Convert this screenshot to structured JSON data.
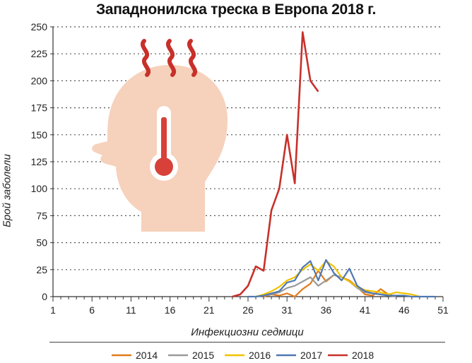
{
  "chart_data": {
    "type": "line",
    "title": "Западнонилска треска в Европа 2018 г.",
    "xlabel": "Инфекциозни седмици",
    "ylabel": "Брой заболели",
    "xlim": [
      1,
      51
    ],
    "ylim": [
      0,
      250
    ],
    "xticks": [
      "1",
      "6",
      "11",
      "16",
      "21",
      "26",
      "31",
      "36",
      "41",
      "46",
      "51"
    ],
    "yticks": [
      "0",
      "25",
      "50",
      "75",
      "100",
      "125",
      "150",
      "175",
      "200",
      "225",
      "250"
    ],
    "grid": "horizontal dotted",
    "legend_position": "bottom",
    "colors": {
      "2014": "#e07b1a",
      "2015": "#9a9a9a",
      "2016": "#f2c200",
      "2017": "#4f78b0",
      "2018": "#c8302a"
    },
    "series": [
      {
        "name": "2014",
        "x": [
          28,
          29,
          30,
          31,
          32,
          33,
          34,
          35,
          36,
          37,
          38,
          39,
          40,
          41,
          42,
          43,
          44,
          45
        ],
        "y": [
          0,
          2,
          1,
          3,
          0,
          7,
          12,
          24,
          14,
          20,
          18,
          15,
          9,
          2,
          1,
          7,
          2,
          0
        ]
      },
      {
        "name": "2015",
        "x": [
          27,
          28,
          29,
          30,
          31,
          32,
          33,
          34,
          35,
          36,
          37,
          38,
          39,
          40,
          41,
          42,
          43,
          44,
          45
        ],
        "y": [
          0,
          1,
          2,
          4,
          8,
          10,
          14,
          18,
          10,
          15,
          20,
          18,
          14,
          8,
          4,
          3,
          2,
          1,
          0
        ]
      },
      {
        "name": "2016",
        "x": [
          27,
          28,
          29,
          30,
          31,
          32,
          33,
          34,
          35,
          36,
          37,
          38,
          39,
          40,
          41,
          42,
          43,
          44,
          45,
          46,
          47,
          48
        ],
        "y": [
          0,
          2,
          5,
          9,
          15,
          18,
          25,
          30,
          24,
          33,
          28,
          18,
          14,
          9,
          6,
          5,
          4,
          2,
          4,
          3,
          2,
          0
        ]
      },
      {
        "name": "2017",
        "x": [
          26,
          27,
          28,
          29,
          30,
          31,
          32,
          33,
          34,
          35,
          36,
          37,
          38,
          39,
          40,
          41,
          42,
          43,
          44,
          45,
          46,
          47,
          48,
          49,
          50
        ],
        "y": [
          0,
          0,
          1,
          3,
          5,
          13,
          15,
          27,
          33,
          15,
          34,
          22,
          15,
          26,
          10,
          5,
          3,
          2,
          1,
          1,
          1,
          0,
          0,
          0,
          0
        ]
      },
      {
        "name": "2018",
        "x": [
          24,
          25,
          26,
          27,
          28,
          29,
          30,
          31,
          32,
          33,
          34,
          35
        ],
        "y": [
          0,
          2,
          10,
          28,
          24,
          80,
          100,
          150,
          105,
          245,
          200,
          190
        ]
      }
    ]
  }
}
